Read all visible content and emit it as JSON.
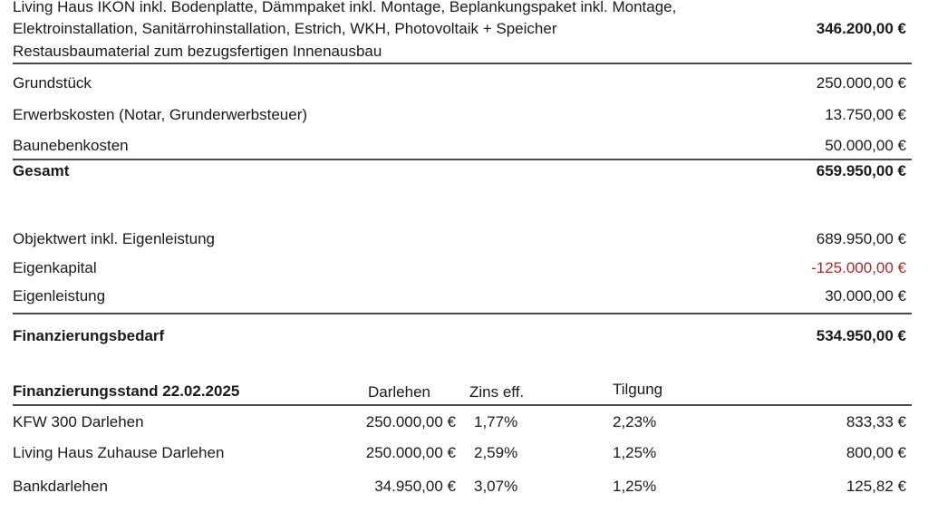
{
  "cost": {
    "house_lines": [
      "Living Haus IKON inkl. Bodenplatte, Dämmpaket inkl. Montage, Beplankungspaket inkl. Montage,",
      "Elektroinstallation, Sanitärrohinstallation, Estrich, WKH, Photovoltaik + Speicher",
      "Restausbaumaterial zum bezugsfertigen Innenausbau"
    ],
    "house_amount": "346.200,00 €",
    "items": [
      {
        "label": "Grundstück",
        "amount": "250.000,00 €"
      },
      {
        "label": "Erwerbskosten (Notar, Grunderwerbsteuer)",
        "amount": "13.750,00 €"
      },
      {
        "label": "Baunebenkosten",
        "amount": "50.000,00 €"
      }
    ],
    "total_label": "Gesamt",
    "total_amount": "659.950,00 €"
  },
  "financing": {
    "items": [
      {
        "label": "Objektwert inkl. Eigenleistung",
        "amount": "689.950,00 €"
      },
      {
        "label": "Eigenkapital",
        "amount": "-125.000,00 €"
      },
      {
        "label": "Eigenleistung",
        "amount": "30.000,00 €"
      }
    ],
    "need_label": "Finanzierungsbedarf",
    "need_amount": "534.950,00 €",
    "negative_color": "#b0282b"
  },
  "loans": {
    "title": "Finanzierungsstand 22.02.2025",
    "headers": {
      "amount": "Darlehen",
      "rate": "Zins eff.",
      "repayment": "Tilgung"
    },
    "rows": [
      {
        "name": "KFW 300 Darlehen",
        "amount": "250.000,00 €",
        "rate": "1,77%",
        "repayment": "2,23%",
        "monthly": "833,33 €"
      },
      {
        "name": "Living Haus Zuhause Darlehen",
        "amount": "250.000,00 €",
        "rate": "2,59%",
        "repayment": "1,25%",
        "monthly": "800,00 €"
      },
      {
        "name": "Bankdarlehen",
        "amount": "34.950,00 €",
        "rate": "3,07%",
        "repayment": "1,25%",
        "monthly": "125,82 €"
      }
    ]
  }
}
